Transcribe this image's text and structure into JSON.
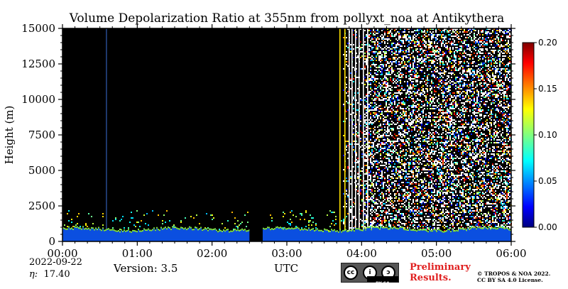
{
  "chart_data": {
    "type": "heatmap",
    "title": "Volume Depolarization Ratio at 355nm from pollyxt_noa at Antikythera",
    "xlabel": "UTC",
    "ylabel": "Height (m)",
    "x_range": [
      "00:00",
      "06:00"
    ],
    "x_ticks": [
      "00:00",
      "01:00",
      "02:00",
      "03:00",
      "04:00",
      "05:00",
      "06:00"
    ],
    "ylim": [
      0,
      15000
    ],
    "y_ticks": [
      "0",
      "2500",
      "5000",
      "7500",
      "10000",
      "12500",
      "15000"
    ],
    "colorbar": {
      "range": [
        0.0,
        0.2
      ],
      "ticks": [
        "0.00",
        "0.05",
        "0.10",
        "0.15",
        "0.20"
      ],
      "colormap": "jet"
    },
    "features": {
      "background_color": "#000000",
      "low_signal_layer_top_m": 700,
      "noisy_region_start_utc": "03:45",
      "gap_utc": [
        "02:30",
        "02:40"
      ],
      "vertical_line_utc": "00:35",
      "vertical_line_color": "#3c6fd8"
    }
  },
  "footer": {
    "date": "2022-09-22",
    "eta_label": "η:",
    "eta_value": "17.40",
    "version": "Version: 3.5",
    "xlabel": "UTC",
    "preliminary_line1": "Preliminary",
    "preliminary_line2": "Results.",
    "copyright_line1": "© TROPOS & NOA 2022.",
    "copyright_line2": "CC BY SA 4.0 License.",
    "preliminary_color": "#e02020"
  },
  "license_badge": {
    "glyphs": [
      "cc",
      "i",
      "ↄ"
    ],
    "tag": "BY SA"
  }
}
